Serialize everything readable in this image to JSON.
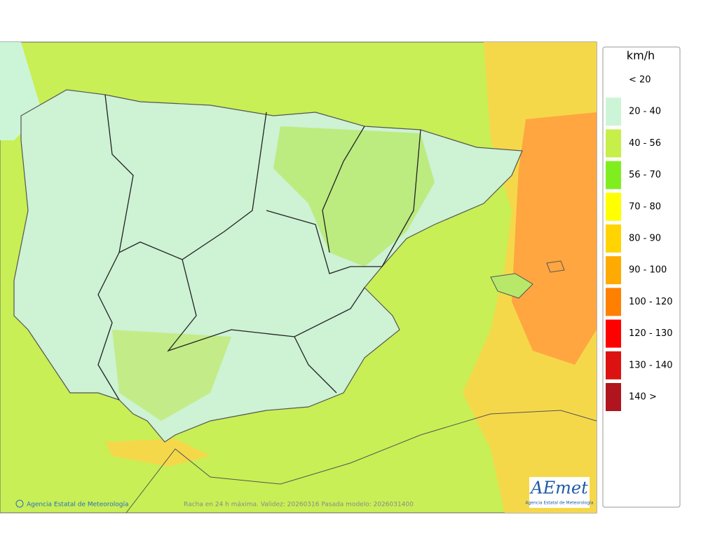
{
  "legend": {
    "title": "km/h",
    "items": [
      {
        "label": "< 20",
        "color": null
      },
      {
        "label": "20 - 40",
        "color": "#ccf5d8"
      },
      {
        "label": "40 - 56",
        "color": "#c6ef4a"
      },
      {
        "label": "56 - 70",
        "color": "#80ee1e"
      },
      {
        "label": "70 - 80",
        "color": "#ffff00"
      },
      {
        "label": "80 - 90",
        "color": "#ffd400"
      },
      {
        "label": "90 - 100",
        "color": "#ffaa00"
      },
      {
        "label": "100 - 120",
        "color": "#ff8000"
      },
      {
        "label": "120 - 130",
        "color": "#ff0000"
      },
      {
        "label": "130 - 140",
        "color": "#dc1212"
      },
      {
        "label": "140 >",
        "color": "#b0141e"
      }
    ]
  },
  "footer": {
    "credit": "Agencia Estatal de Meteorología",
    "caption": "Racha en 24 h máxima. Validez: 20260316 Pasada modelo: 2026031400"
  },
  "logo": {
    "text": "AEmet",
    "subtitle": "Agencia Estatal de Meteorología"
  }
}
